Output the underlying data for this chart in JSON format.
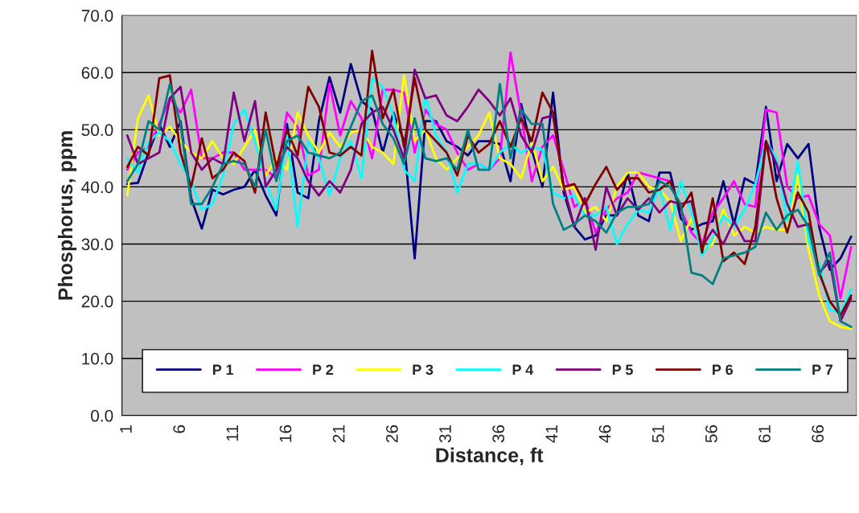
{
  "chart_data": {
    "type": "line",
    "xlabel": "Distance, ft",
    "ylabel": "Phosphorus, ppm",
    "categories": [
      "1",
      null,
      null,
      null,
      null,
      "6",
      null,
      null,
      null,
      null,
      "11",
      null,
      null,
      null,
      null,
      "16",
      null,
      null,
      null,
      null,
      "21",
      null,
      null,
      null,
      null,
      "26",
      null,
      null,
      null,
      null,
      "31",
      null,
      null,
      null,
      null,
      "36",
      null,
      null,
      null,
      null,
      "41",
      null,
      null,
      null,
      null,
      "46",
      null,
      null,
      null,
      null,
      "51",
      null,
      null,
      null,
      null,
      "56",
      null,
      null,
      null,
      null,
      "61",
      null,
      null,
      null,
      null,
      "66",
      null,
      null,
      null
    ],
    "ylim": [
      0,
      70
    ],
    "yticks": [
      {
        "value": 0,
        "label": "0.0"
      },
      {
        "value": 10,
        "label": "10.0"
      },
      {
        "value": 20,
        "label": "20.0"
      },
      {
        "value": 30,
        "label": "30.0"
      },
      {
        "value": 40,
        "label": "40.0"
      },
      {
        "value": 50,
        "label": "50.0"
      },
      {
        "value": 60,
        "label": "60.0"
      },
      {
        "value": 70,
        "label": "70.0"
      }
    ],
    "grid": "y",
    "legend": "bottom",
    "marker": "none",
    "line_style": "solid",
    "series": [
      {
        "name": "P 1",
        "color": "#000080",
        "values": [
          40.5,
          40.7,
          46,
          51,
          47,
          51.5,
          38,
          32.7,
          39.5,
          38.7,
          39.5,
          40,
          43,
          38.5,
          35,
          51,
          39,
          38,
          51.5,
          59.2,
          53,
          61.5,
          55,
          53.5,
          46,
          53,
          48,
          27.5,
          51.5,
          51.5,
          48,
          47,
          45.5,
          48,
          48,
          47.5,
          41,
          54.5,
          46.5,
          40,
          56.5,
          39,
          33,
          30.8,
          31.5,
          35,
          35,
          42.5,
          35,
          34,
          42.5,
          42.5,
          34.5,
          32.5,
          33.5,
          34,
          41,
          33.5,
          41.5,
          40.5,
          54,
          41,
          47.5,
          45,
          47.5,
          33,
          25.5,
          27.5,
          31.3
        ]
      },
      {
        "name": "P 2",
        "color": "#ff00ff",
        "values": [
          43,
          46,
          47,
          51,
          55.5,
          53,
          57,
          45,
          45,
          46,
          46,
          43,
          43,
          43,
          41.5,
          53,
          50.5,
          42,
          43,
          58,
          49,
          55,
          52,
          45,
          57,
          57,
          56.5,
          46,
          53.5,
          51,
          50,
          46,
          43,
          44,
          43,
          45,
          63.5,
          52.5,
          41,
          47,
          49,
          43,
          36.5,
          38,
          32,
          36,
          38,
          39,
          42.5,
          42,
          41.5,
          41,
          36,
          32,
          30,
          35.5,
          38,
          41,
          37,
          36.5,
          53.5,
          53,
          40,
          38,
          38.5,
          33.5,
          31.5,
          20.5,
          29.5
        ]
      },
      {
        "name": "P 3",
        "color": "#ffff00",
        "values": [
          38.5,
          52,
          56,
          49,
          50.5,
          48,
          46,
          45,
          48,
          45,
          44,
          47,
          50,
          42,
          45,
          43,
          53,
          49,
          46,
          49.5,
          47,
          49.5,
          50,
          47,
          46,
          44,
          59.5,
          48,
          50,
          45,
          43,
          45,
          47,
          49,
          53,
          45,
          44,
          41.5,
          48,
          41,
          43.5,
          39.5,
          40,
          35.5,
          36.5,
          34,
          40,
          42.5,
          42.5,
          40,
          39.5,
          37.5,
          30.5,
          34.5,
          29,
          30,
          36,
          31.5,
          33,
          32,
          33,
          32.5,
          32.5,
          42,
          29,
          21,
          16.5,
          15.5,
          15.2
        ]
      },
      {
        "name": "P 4",
        "color": "#00ffff",
        "values": [
          45,
          42.5,
          48,
          49.5,
          48,
          44,
          41,
          36,
          37,
          42,
          51,
          53.5,
          48,
          41,
          36,
          49,
          33,
          48,
          45,
          38.5,
          45,
          48,
          41.5,
          59,
          57.5,
          52.5,
          43,
          41,
          56,
          49,
          46,
          39,
          44,
          44,
          43,
          46,
          47.5,
          46,
          47,
          46.5,
          39,
          38,
          38.5,
          35,
          35,
          36.5,
          30,
          33.5,
          36,
          35.5,
          40,
          32.5,
          41,
          35.5,
          28,
          31,
          35,
          33,
          36,
          40.5,
          48,
          45,
          34,
          44.5,
          30.5,
          26.5,
          18.5,
          18,
          22
        ]
      },
      {
        "name": "P 5",
        "color": "#800080",
        "values": [
          49,
          44,
          45,
          46,
          55.5,
          57.5,
          46,
          43,
          45,
          44,
          56.5,
          48,
          55,
          40,
          43,
          47,
          45,
          41,
          38.5,
          41,
          39,
          43,
          51,
          53,
          54,
          50,
          45,
          60.5,
          55.5,
          56,
          52.5,
          51.5,
          54,
          57,
          55,
          52.5,
          55.5,
          49,
          46,
          52,
          52.5,
          40,
          33,
          38,
          29,
          40,
          35,
          38,
          36,
          38,
          35.5,
          37.5,
          37,
          37.5,
          29.5,
          32.5,
          30,
          34,
          30.5,
          30.5,
          48,
          44,
          37,
          33,
          33.5,
          25,
          27,
          16.5,
          20.5
        ]
      },
      {
        "name": "P 6",
        "color": "#800000",
        "values": [
          43.5,
          47,
          45.5,
          59,
          59.5,
          46,
          40,
          48.5,
          41.5,
          43,
          46,
          44.5,
          39,
          53,
          43.5,
          50,
          45.5,
          57.5,
          54,
          46,
          45.5,
          47,
          45.5,
          63.8,
          52,
          57,
          47,
          59,
          50,
          48,
          46,
          42,
          49,
          46,
          47.5,
          51.5,
          47,
          52,
          48,
          56.5,
          53,
          40,
          40.5,
          37,
          40.5,
          43.5,
          39.5,
          41.5,
          41.5,
          39,
          39.5,
          41,
          36,
          39,
          28.5,
          38,
          27,
          28.5,
          26.5,
          33,
          48,
          38,
          32,
          39,
          35.5,
          25,
          20,
          17.5,
          21
        ]
      },
      {
        "name": "P 7",
        "color": "#008080",
        "values": [
          41,
          44,
          51.5,
          50,
          58,
          51,
          37,
          37,
          40,
          44,
          44.5,
          44,
          40,
          50,
          41,
          48,
          49,
          46,
          45.5,
          45,
          46,
          50.5,
          55,
          56,
          51,
          48.5,
          44,
          52,
          45,
          44.5,
          45,
          43,
          50,
          43,
          43,
          58,
          45,
          53.5,
          51,
          51,
          37,
          32.5,
          33.5,
          35,
          34,
          32,
          35.5,
          36.5,
          36.5,
          37,
          41,
          40,
          37,
          25,
          24.5,
          23,
          27.5,
          28,
          28.5,
          29.5,
          35.5,
          32.5,
          35,
          36,
          33,
          24.5,
          28.5,
          16.5,
          15.5
        ]
      }
    ]
  }
}
